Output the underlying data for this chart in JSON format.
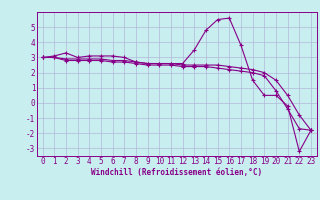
{
  "xlabel": "Windchill (Refroidissement éolien,°C)",
  "ylabel": "",
  "xlim": [
    -0.5,
    23.5
  ],
  "ylim": [
    -3.5,
    6.0
  ],
  "yticks": [
    -3,
    -2,
    -1,
    0,
    1,
    2,
    3,
    4,
    5
  ],
  "xticks": [
    0,
    1,
    2,
    3,
    4,
    5,
    6,
    7,
    8,
    9,
    10,
    11,
    12,
    13,
    14,
    15,
    16,
    17,
    18,
    19,
    20,
    21,
    22,
    23
  ],
  "background_color": "#c8eef0",
  "grid_color": "#b0b8d8",
  "line_color": "#880088",
  "line1_y": [
    3.0,
    3.1,
    3.3,
    3.0,
    3.1,
    3.1,
    3.1,
    3.0,
    2.7,
    2.6,
    2.6,
    2.6,
    2.6,
    3.5,
    4.8,
    5.5,
    5.6,
    3.8,
    1.5,
    0.5,
    0.5,
    -0.2,
    -3.2,
    -1.8
  ],
  "line2_y": [
    3.0,
    3.0,
    2.8,
    2.8,
    2.8,
    2.8,
    2.7,
    2.7,
    2.6,
    2.5,
    2.5,
    2.5,
    2.4,
    2.4,
    2.4,
    2.3,
    2.2,
    2.1,
    2.0,
    1.8,
    0.8,
    -0.4,
    -1.7,
    -1.8
  ],
  "line3_y": [
    3.0,
    3.0,
    2.9,
    2.9,
    2.9,
    2.9,
    2.8,
    2.8,
    2.7,
    2.6,
    2.6,
    2.6,
    2.5,
    2.5,
    2.5,
    2.5,
    2.4,
    2.3,
    2.2,
    2.0,
    1.5,
    0.5,
    -0.8,
    -1.8
  ],
  "marker": "+",
  "markersize": 3,
  "linewidth": 0.8,
  "tick_fontsize": 5.5,
  "xlabel_fontsize": 5.5
}
